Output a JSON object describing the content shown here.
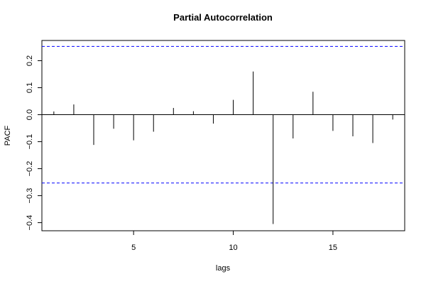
{
  "chart_data": {
    "type": "bar",
    "title": "Partial Autocorrelation",
    "xlabel": "lags",
    "ylabel": "PACF",
    "x": [
      1,
      2,
      3,
      4,
      5,
      6,
      7,
      8,
      9,
      10,
      11,
      12,
      13,
      14,
      15,
      16,
      17,
      18
    ],
    "values": [
      0.012,
      0.038,
      -0.112,
      -0.052,
      -0.095,
      -0.063,
      0.025,
      0.013,
      -0.033,
      0.055,
      0.16,
      -0.405,
      -0.088,
      0.085,
      -0.06,
      -0.08,
      -0.105,
      -0.018
    ],
    "confidence_bounds": [
      0.253,
      -0.253
    ],
    "xlim": [
      0.4,
      18.6
    ],
    "ylim": [
      -0.43,
      0.275
    ],
    "x_ticks": [
      5,
      10,
      15
    ],
    "y_ticks": [
      -0.4,
      -0.3,
      -0.2,
      -0.1,
      0.0,
      0.1,
      0.2
    ],
    "y_tick_labels": [
      "−0.4",
      "−0.3",
      "−0.2",
      "−0.1",
      "0.0",
      "0.1",
      "0.2"
    ],
    "bound_color": "#0000ff",
    "bar_color": "#000000",
    "grid": false
  }
}
